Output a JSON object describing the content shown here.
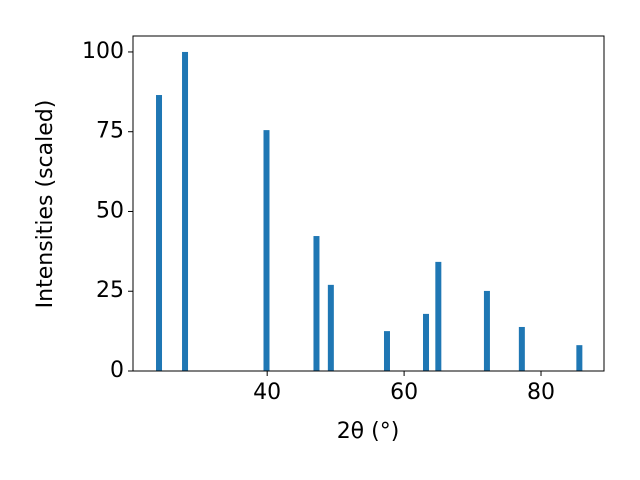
{
  "chart_data": {
    "type": "bar",
    "x_label": "2θ (°)",
    "y_label": "Intensities (scaled)",
    "x": [
      24.2,
      28.0,
      39.9,
      47.2,
      49.3,
      57.5,
      63.2,
      65.0,
      72.1,
      77.2,
      85.6
    ],
    "values": [
      86.5,
      100,
      75.5,
      42.3,
      27,
      12.5,
      17.9,
      34.2,
      25.1,
      13.8,
      8.1
    ],
    "color": "#1f77b4",
    "xlim": [
      20.4,
      89.2
    ],
    "xticks": [
      40,
      60,
      80
    ],
    "ylim": [
      0,
      105
    ],
    "yticks": [
      0,
      25,
      50,
      75,
      100
    ],
    "grid": false
  }
}
